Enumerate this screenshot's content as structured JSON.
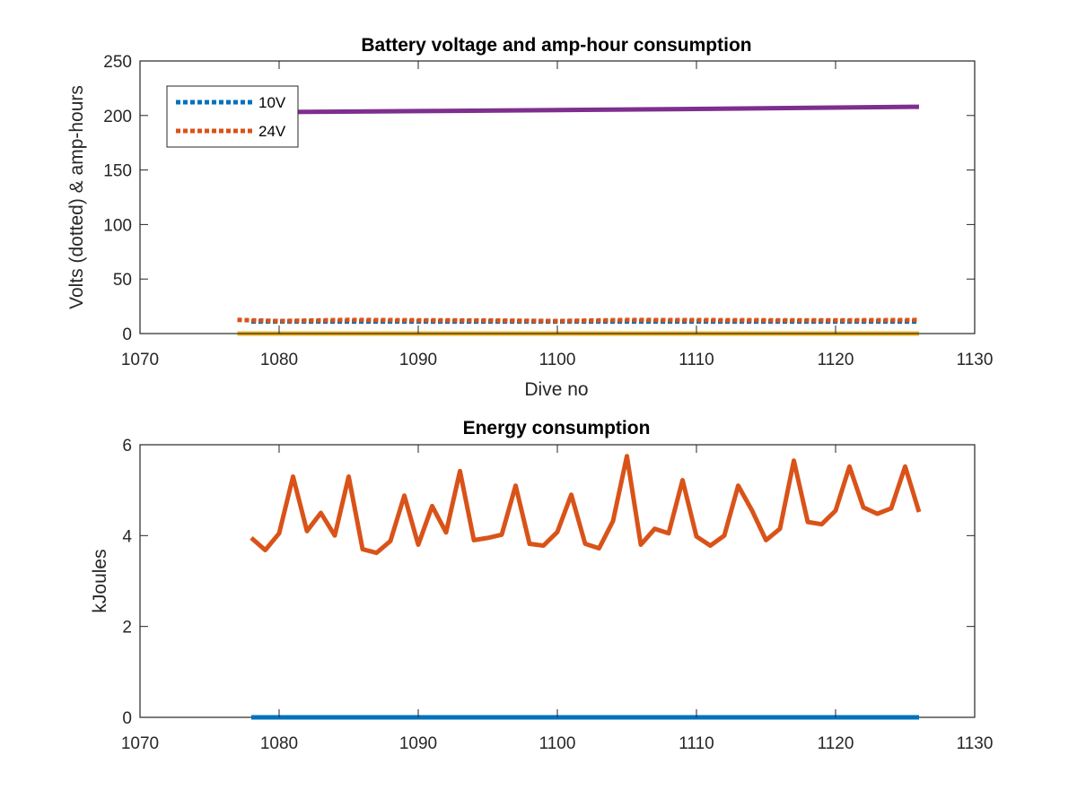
{
  "chart_data": [
    {
      "type": "line",
      "title": "Battery voltage and amp-hour consumption",
      "xlabel": "Dive no",
      "ylabel": "Volts (dotted) & amp-hours",
      "xlim": [
        1070,
        1130
      ],
      "ylim": [
        0,
        250
      ],
      "xticks": [
        1070,
        1080,
        1090,
        1100,
        1110,
        1120,
        1130
      ],
      "yticks": [
        0,
        50,
        100,
        150,
        200,
        250
      ],
      "grid": false,
      "legend": {
        "placement": "top-left",
        "entries": [
          "10V",
          "24V"
        ]
      },
      "series": [
        {
          "name": "10V",
          "style": "dotted",
          "color": "#0072BD",
          "x": [
            1078,
            1126
          ],
          "y": [
            11,
            11
          ]
        },
        {
          "name": "24V",
          "style": "dotted",
          "color": "#D95319",
          "x": [
            1077,
            1080,
            1085,
            1090,
            1095,
            1100,
            1105,
            1110,
            1115,
            1120,
            1126
          ],
          "y": [
            12.5,
            11.5,
            12.5,
            12.2,
            12.0,
            11.5,
            12.4,
            12.3,
            12.2,
            12.1,
            12.4
          ]
        },
        {
          "style": "solid",
          "color": "#EDB120",
          "x": [
            1077,
            1126
          ],
          "y": [
            0,
            0
          ]
        },
        {
          "style": "solid",
          "color": "#7E2F8E",
          "x": [
            1077,
            1090,
            1100,
            1110,
            1126
          ],
          "y": [
            203,
            204,
            205,
            206,
            208
          ]
        }
      ]
    },
    {
      "type": "line",
      "title": "Energy consumption",
      "xlabel": "",
      "ylabel": "kJoules",
      "xlim": [
        1070,
        1130
      ],
      "ylim": [
        0,
        6
      ],
      "xticks": [
        1070,
        1080,
        1090,
        1100,
        1110,
        1120,
        1130
      ],
      "yticks": [
        0,
        2,
        4,
        6
      ],
      "grid": false,
      "series": [
        {
          "style": "solid",
          "color": "#0072BD",
          "x": [
            1078,
            1126
          ],
          "y": [
            0,
            0
          ]
        },
        {
          "style": "solid",
          "color": "#D95319",
          "x": [
            1078,
            1079,
            1080,
            1081,
            1082,
            1083,
            1084,
            1085,
            1086,
            1087,
            1088,
            1089,
            1090,
            1091,
            1092,
            1093,
            1094,
            1095,
            1096,
            1097,
            1098,
            1099,
            1100,
            1101,
            1102,
            1103,
            1104,
            1105,
            1106,
            1107,
            1108,
            1109,
            1110,
            1111,
            1112,
            1113,
            1114,
            1115,
            1116,
            1117,
            1118,
            1119,
            1120,
            1121,
            1122,
            1123,
            1124,
            1125,
            1126
          ],
          "y": [
            3.95,
            3.68,
            4.05,
            5.3,
            4.1,
            4.5,
            4.0,
            5.3,
            3.7,
            3.62,
            3.88,
            4.88,
            3.8,
            4.65,
            4.07,
            5.42,
            3.9,
            3.95,
            4.02,
            5.1,
            3.82,
            3.78,
            4.08,
            4.9,
            3.82,
            3.72,
            4.32,
            5.75,
            3.8,
            4.15,
            4.05,
            5.22,
            3.98,
            3.78,
            4.0,
            5.1,
            4.55,
            3.9,
            4.15,
            5.65,
            4.3,
            4.25,
            4.55,
            5.52,
            4.62,
            4.48,
            4.6,
            5.52,
            4.52
          ]
        }
      ]
    }
  ]
}
